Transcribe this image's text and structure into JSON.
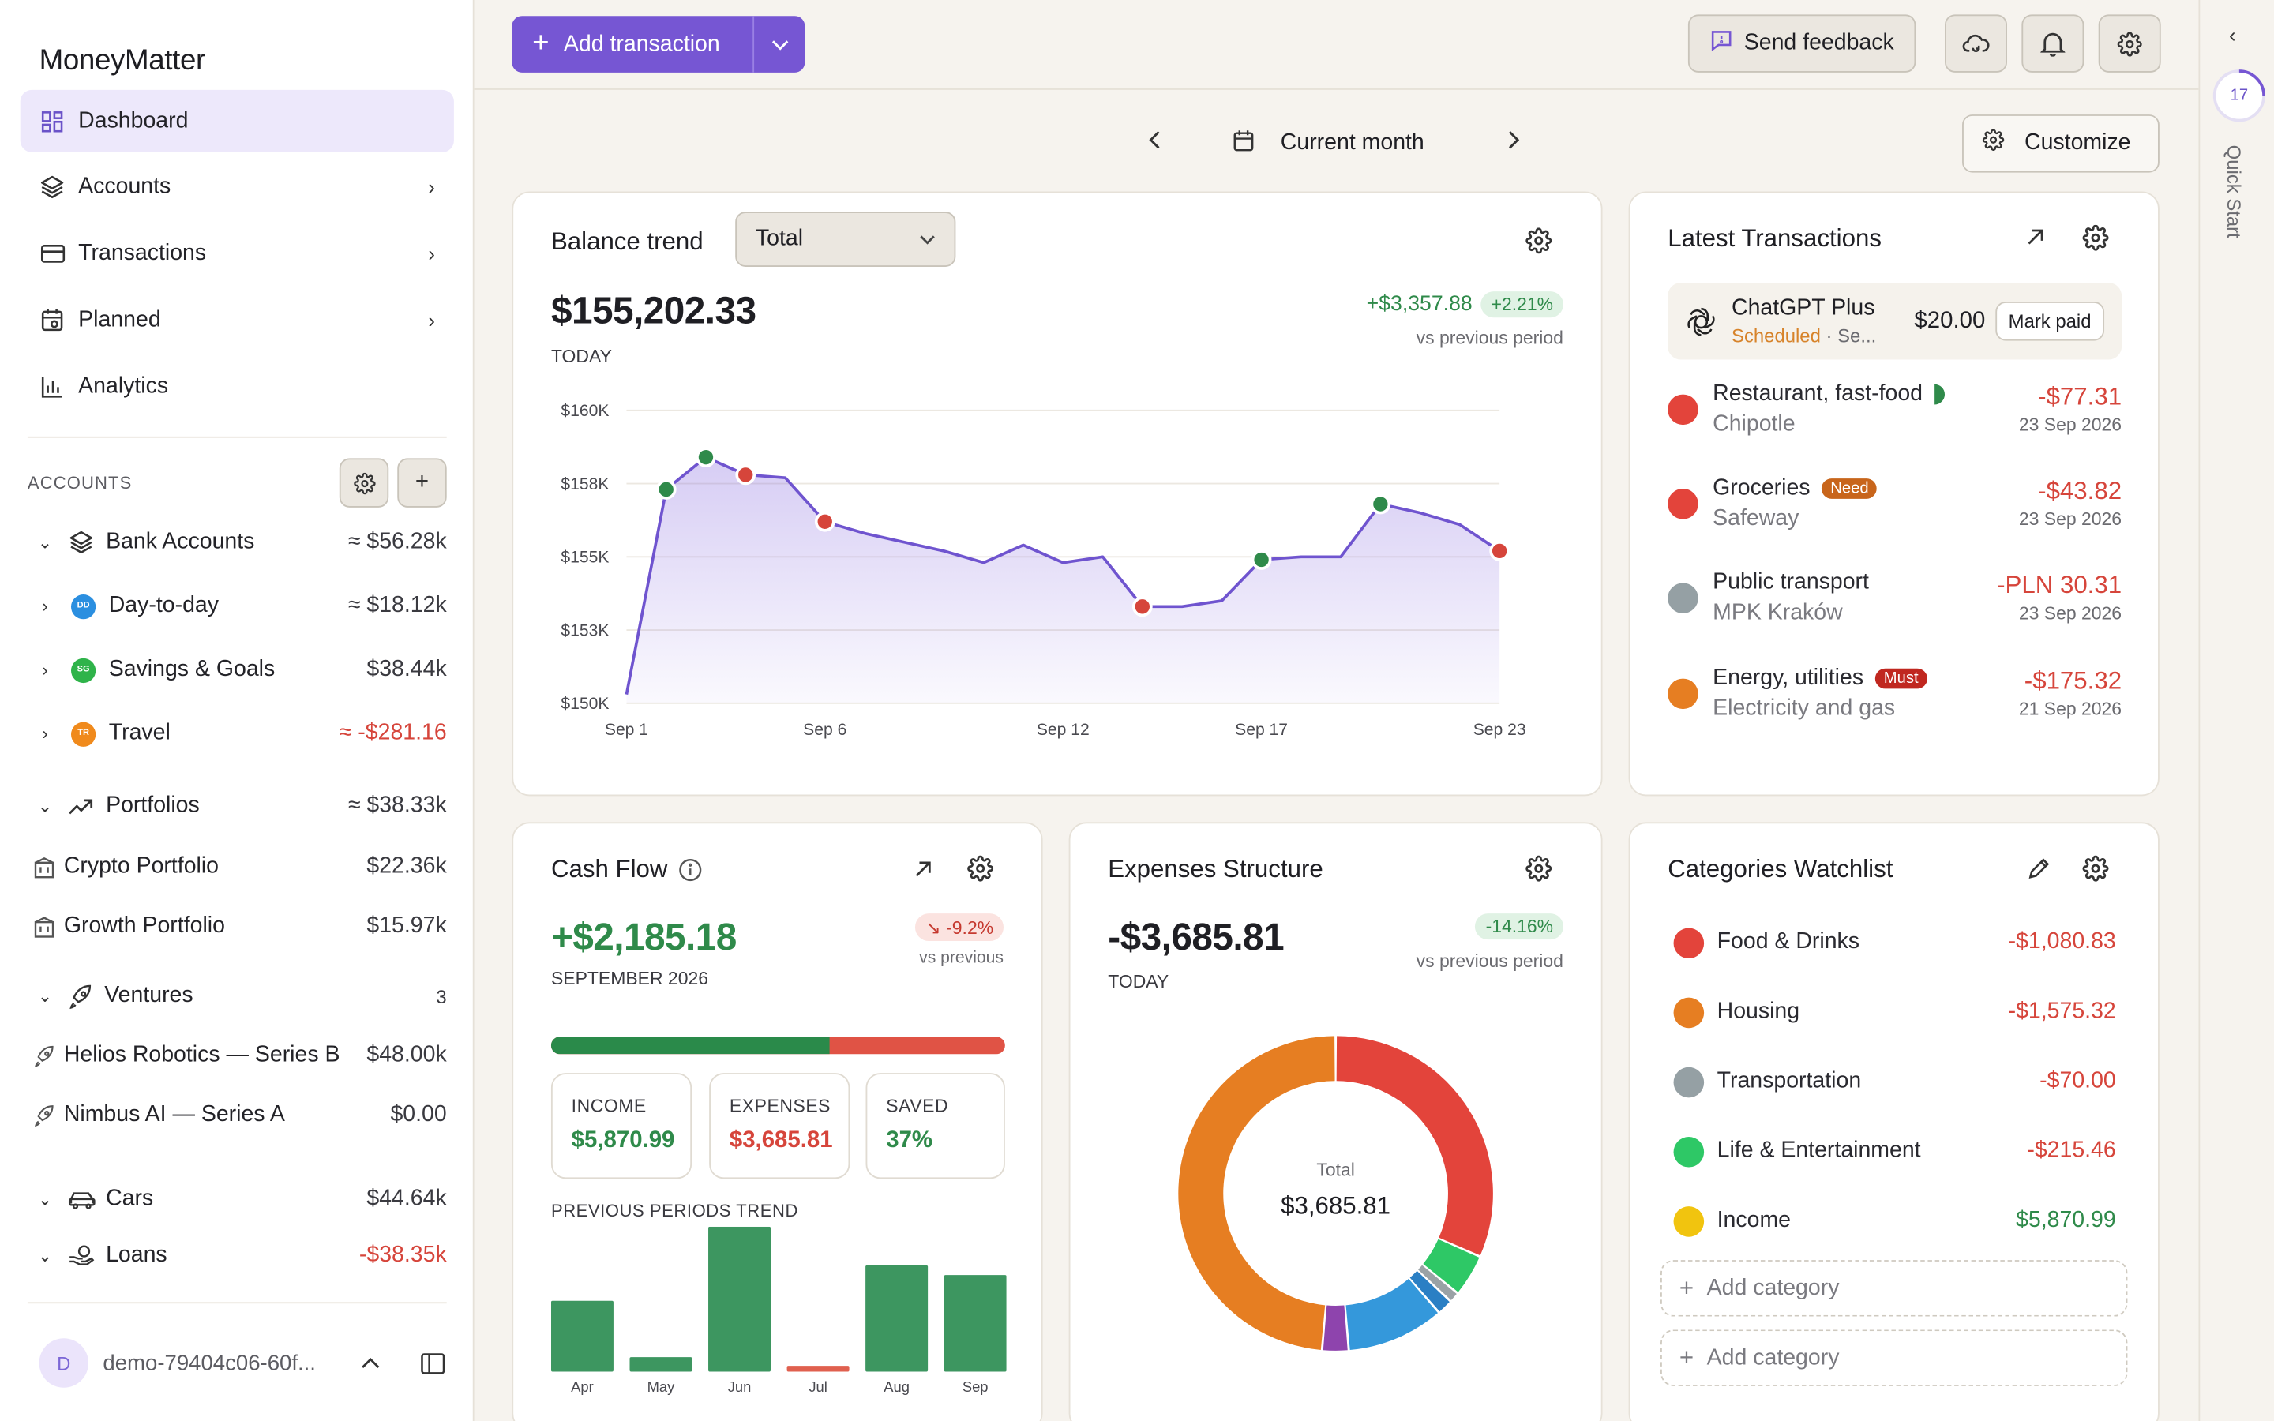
{
  "app": {
    "brand": "MoneyMatter"
  },
  "nav": [
    {
      "label": "Dashboard",
      "icon": "dashboard-icon",
      "active": true,
      "chevron": false
    },
    {
      "label": "Accounts",
      "icon": "layers-icon",
      "active": false,
      "chevron": true
    },
    {
      "label": "Transactions",
      "icon": "card-icon",
      "active": false,
      "chevron": true
    },
    {
      "label": "Planned",
      "icon": "calendar-icon",
      "active": false,
      "chevron": true
    },
    {
      "label": "Analytics",
      "icon": "bar-chart-icon",
      "active": false,
      "chevron": false
    }
  ],
  "accounts": {
    "header": "ACCOUNTS",
    "rows": [
      {
        "kind": "group",
        "arrow": "⌄",
        "icon": "layers-icon",
        "name": "Bank Accounts",
        "value": "≈ $56.28k",
        "neg": false
      },
      {
        "kind": "sub",
        "arrow": "›",
        "badge": "DD",
        "badge_color": "#2b8fe0",
        "name": "Day-to-day",
        "value": "≈ $18.12k",
        "neg": false
      },
      {
        "kind": "sub",
        "arrow": "›",
        "badge": "SG",
        "badge_color": "#2fb34a",
        "name": "Savings & Goals",
        "value": "$38.44k",
        "neg": false
      },
      {
        "kind": "sub",
        "arrow": "›",
        "badge": "TR",
        "badge_color": "#f08a1c",
        "name": "Travel",
        "value": "≈ -$281.16",
        "neg": true
      },
      {
        "kind": "group",
        "arrow": "⌄",
        "icon": "trend-icon",
        "name": "Portfolios",
        "value": "≈ $38.33k",
        "neg": false
      },
      {
        "kind": "item",
        "icon": "building-icon",
        "name": "Crypto Portfolio",
        "value": "$22.36k",
        "neg": false
      },
      {
        "kind": "item",
        "icon": "building-icon",
        "name": "Growth Portfolio",
        "value": "$15.97k",
        "neg": false
      },
      {
        "kind": "group",
        "arrow": "⌄",
        "icon": "rocket-icon",
        "name": "Ventures",
        "value": "3",
        "neg": false
      },
      {
        "kind": "item",
        "icon": "rocket-icon",
        "name": "Helios Robotics — Series B",
        "value": "$48.00k",
        "neg": false
      },
      {
        "kind": "item",
        "icon": "rocket-icon",
        "name": "Nimbus AI — Series A",
        "value": "$0.00",
        "neg": false
      },
      {
        "kind": "group",
        "arrow": "⌄",
        "icon": "car-icon",
        "name": "Cars",
        "value": "$44.64k",
        "neg": false
      },
      {
        "kind": "group",
        "arrow": "⌄",
        "icon": "loan-icon",
        "name": "Loans",
        "value": "-$38.35k",
        "neg": true
      }
    ]
  },
  "user": {
    "initial": "D",
    "name": "demo-79404c06-60f..."
  },
  "topbar": {
    "add_label": "Add transaction",
    "feedback_label": "Send feedback"
  },
  "rail": {
    "count": "17",
    "label": "Quick Start"
  },
  "period": {
    "label": "Current month"
  },
  "customize_label": "Customize",
  "balance": {
    "title": "Balance trend",
    "select": "Total",
    "value": "$155,202.33",
    "caption": "TODAY",
    "delta": "+$3,357.88",
    "delta_pct": "+2.21%",
    "vs": "vs previous period"
  },
  "chart_data": [
    {
      "type": "area",
      "title": "",
      "y_ticks": [
        "$150K",
        "$153K",
        "$155K",
        "$158K",
        "$160K"
      ],
      "x_ticks": [
        "Sep 1",
        "Sep 6",
        "Sep 12",
        "Sep 17",
        "Sep 23"
      ],
      "ylim": [
        150000,
        160000
      ],
      "x": [
        1,
        2,
        3,
        4,
        5,
        6,
        7,
        8,
        9,
        10,
        11,
        12,
        13,
        14,
        15,
        16,
        17,
        18,
        19,
        20,
        21,
        22,
        23
      ],
      "values": [
        150300,
        157300,
        158400,
        157800,
        157700,
        156200,
        155800,
        155500,
        155200,
        154800,
        155400,
        154800,
        155000,
        153300,
        153300,
        153500,
        154900,
        155000,
        155000,
        156800,
        156500,
        156100,
        155200
      ],
      "markers": [
        {
          "x": 2,
          "y": 157300,
          "color": "#2f8a4a"
        },
        {
          "x": 3,
          "y": 158400,
          "color": "#2f8a4a"
        },
        {
          "x": 4,
          "y": 157800,
          "color": "#d6453b"
        },
        {
          "x": 6,
          "y": 156200,
          "color": "#d6453b"
        },
        {
          "x": 14,
          "y": 153300,
          "color": "#d6453b"
        },
        {
          "x": 17,
          "y": 154900,
          "color": "#2f8a4a"
        },
        {
          "x": 20,
          "y": 156800,
          "color": "#2f8a4a"
        },
        {
          "x": 23,
          "y": 155200,
          "color": "#d6453b"
        }
      ]
    },
    {
      "type": "bar",
      "title": "PREVIOUS PERIODS TREND",
      "categories": [
        "Apr",
        "May",
        "Jun",
        "Jul",
        "Aug",
        "Sep"
      ],
      "values": [
        2200,
        450,
        4500,
        180,
        3300,
        3000
      ],
      "colors": [
        "#3d9660",
        "#3d9660",
        "#3d9660",
        "#e0604f",
        "#3d9660",
        "#3d9660"
      ]
    },
    {
      "type": "pie",
      "title": "Expenses Structure",
      "center_label": "Total",
      "center_value": "$3,685.81",
      "values": [
        1164,
        160,
        40,
        60,
        370,
        100,
        1792
      ],
      "colors": [
        "#e3443b",
        "#2ec866",
        "#9aa2a6",
        "#2a7fc4",
        "#3498db",
        "#8e44ad",
        "#e67e22"
      ]
    }
  ],
  "latest": {
    "title": "Latest Transactions",
    "pinned": {
      "name": "ChatGPT Plus",
      "status": "Scheduled",
      "sub": "· Se...",
      "amount": "$20.00",
      "action": "Mark paid"
    },
    "items": [
      {
        "name": "Restaurant, fast-food",
        "sub": "Chipotle",
        "amount": "-$77.31",
        "date": "23 Sep 2026",
        "color": "#e3443b",
        "tag": "",
        "tag_color": ""
      },
      {
        "name": "Groceries",
        "sub": "Safeway",
        "amount": "-$43.82",
        "date": "23 Sep 2026",
        "color": "#e3443b",
        "tag": "Need",
        "tag_color": "#c8651b"
      },
      {
        "name": "Public transport",
        "sub": "MPK Kraków",
        "amount": "-PLN 30.31",
        "date": "23 Sep 2026",
        "color": "#95a0a4",
        "tag": "",
        "tag_color": ""
      },
      {
        "name": "Energy, utilities",
        "sub": "Electricity and gas",
        "amount": "-$175.32",
        "date": "21 Sep 2026",
        "color": "#e67e22",
        "tag": "Must",
        "tag_color": "#c0271f"
      }
    ]
  },
  "cashflow": {
    "title": "Cash Flow",
    "value": "+$2,185.18",
    "caption": "SEPTEMBER 2026",
    "delta_pct": "↘ -9.2%",
    "vs": "vs previous",
    "income_ratio": 0.614,
    "income_label": "INCOME",
    "income": "$5,870.99",
    "expenses_label": "EXPENSES",
    "expenses": "$3,685.81",
    "saved_label": "SAVED",
    "saved": "37%",
    "trend_label": "PREVIOUS PERIODS TREND"
  },
  "expenses": {
    "title": "Expenses Structure",
    "value": "-$3,685.81",
    "caption": "TODAY",
    "delta_pct": "-14.16%",
    "vs": "vs previous period"
  },
  "watchlist": {
    "title": "Categories Watchlist",
    "items": [
      {
        "name": "Food & Drinks",
        "value": "-$1,080.83",
        "color": "#e3443b",
        "pos": false
      },
      {
        "name": "Housing",
        "value": "-$1,575.32",
        "color": "#e67e22",
        "pos": false
      },
      {
        "name": "Transportation",
        "value": "-$70.00",
        "color": "#95a0a4",
        "pos": false
      },
      {
        "name": "Life & Entertainment",
        "value": "-$215.46",
        "color": "#2ec866",
        "pos": false
      },
      {
        "name": "Income",
        "value": "$5,870.99",
        "color": "#f1c40f",
        "pos": true
      }
    ],
    "add_label": "Add category"
  }
}
